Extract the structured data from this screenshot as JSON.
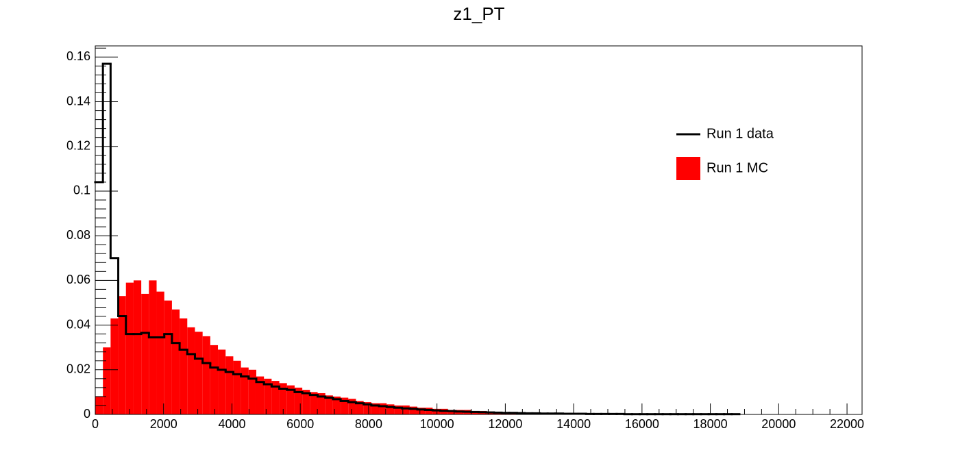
{
  "chart_data": {
    "type": "histogram",
    "title": "z1_PT",
    "bins": [
      0,
      224.4,
      448.8,
      673.2,
      897.6,
      1122,
      1346.4,
      1570.8,
      1795.2,
      2019.6,
      2244,
      2468.4,
      2692.8,
      2917.2,
      3141.6,
      3366,
      3590.4,
      3814.8,
      4039.2,
      4263.6,
      4488,
      4712.4,
      4936.8,
      5161.2,
      5385.6,
      5610,
      5834.4,
      6058.8,
      6283.2,
      6507.6,
      6732,
      6956.4,
      7180.8,
      7405.2,
      7629.6,
      7854,
      8078.4,
      8302.8,
      8527.2,
      8751.6,
      8976,
      9200.4,
      9424.8,
      9649.2,
      9873.6,
      10098,
      10322.4,
      10546.8,
      10771.2,
      10995.6,
      11220,
      11444.4,
      11668.8,
      11893.2,
      12117.6,
      12342,
      12566.4,
      12790.8,
      13015.2,
      13239.6,
      13464,
      13688.4,
      13912.8,
      14137.2,
      14361.6,
      14586,
      14810.4,
      15034.8,
      15259.2,
      15483.6,
      15708,
      15932.4,
      16156.8,
      16381.2,
      16605.6,
      16830,
      17054.4,
      17278.8,
      17503.2,
      17727.6,
      17952,
      18176.4,
      18400.8,
      18625.2,
      18849.6,
      19074,
      19298.4,
      19522.8,
      19747.2,
      19971.6,
      20196,
      20420.4,
      20644.8,
      20869.2,
      21093.6,
      21318,
      21542.4,
      21766.8,
      21991.2,
      22215.6,
      22440
    ],
    "series": [
      {
        "name": "Run 1 data",
        "color": "#000000",
        "draw": "line",
        "values": [
          0.104,
          0.157,
          0.07,
          0.044,
          0.036,
          0.036,
          0.0365,
          0.0345,
          0.0345,
          0.036,
          0.032,
          0.029,
          0.027,
          0.025,
          0.023,
          0.021,
          0.02,
          0.019,
          0.018,
          0.017,
          0.016,
          0.0145,
          0.0135,
          0.0125,
          0.0115,
          0.011,
          0.01,
          0.0095,
          0.0087,
          0.008,
          0.0075,
          0.0068,
          0.006,
          0.0055,
          0.005,
          0.0045,
          0.004,
          0.0037,
          0.0033,
          0.003,
          0.0027,
          0.0025,
          0.0022,
          0.002,
          0.0018,
          0.0016,
          0.0015,
          0.0013,
          0.0012,
          0.0011,
          0.001,
          0.0009,
          0.0008,
          0.0007,
          0.0007,
          0.0006,
          0.0005,
          0.0005,
          0.0004,
          0.0004,
          0.0004,
          0.0003,
          0.0003,
          0.0003,
          0.0002,
          0.0002,
          0.0002,
          0.0002,
          0.0002,
          0.0001,
          0.0001,
          0.0001,
          0.0001,
          0.0001,
          0.0001,
          0.0001,
          0.0001,
          0.0001,
          0.0001,
          0.0001,
          0.0001,
          0.0001,
          0.0001,
          0.0001,
          null,
          null,
          null,
          null,
          null,
          null,
          null,
          null,
          null,
          null,
          null,
          null,
          null,
          null,
          null,
          null
        ]
      },
      {
        "name": "Run 1 MC",
        "color": "#ff0000",
        "draw": "fill",
        "values": [
          0.008,
          0.03,
          0.043,
          0.053,
          0.059,
          0.06,
          0.054,
          0.06,
          0.055,
          0.051,
          0.047,
          0.043,
          0.039,
          0.037,
          0.035,
          0.031,
          0.029,
          0.026,
          0.024,
          0.021,
          0.02,
          0.017,
          0.016,
          0.015,
          0.014,
          0.013,
          0.012,
          0.011,
          0.01,
          0.0095,
          0.0085,
          0.008,
          0.0075,
          0.007,
          0.006,
          0.0055,
          0.005,
          0.005,
          0.0045,
          0.004,
          0.004,
          0.0035,
          0.003,
          0.003,
          0.0025,
          0.0025,
          0.002,
          0.002,
          0.002,
          0.0015,
          0.0015,
          0.0012,
          0.0012,
          0.001,
          0.001,
          0.0008,
          0.0008,
          0.0007,
          0.0006,
          0.0006,
          0.0005,
          0.0005,
          0.0004,
          0.0004,
          0.0003,
          0.0003,
          0.0003,
          0.0002,
          0.0002,
          0.0002,
          0.0001,
          0.0001,
          0.0001,
          0.0001,
          0.0001,
          0.0001,
          0.0001,
          0,
          0,
          0,
          0,
          0,
          0,
          0,
          0,
          0,
          0,
          0,
          0,
          0,
          0,
          0,
          0,
          0,
          0,
          0,
          0,
          0,
          0,
          0
        ]
      }
    ],
    "xlim": [
      0,
      22440
    ],
    "xticks": [
      0,
      2000,
      4000,
      6000,
      8000,
      10000,
      12000,
      14000,
      16000,
      18000,
      20000,
      22000
    ],
    "ylim": [
      0,
      0.165
    ],
    "yticks": [
      0,
      0.02,
      0.04,
      0.06,
      0.08,
      0.1,
      0.12,
      0.14,
      0.16
    ]
  }
}
